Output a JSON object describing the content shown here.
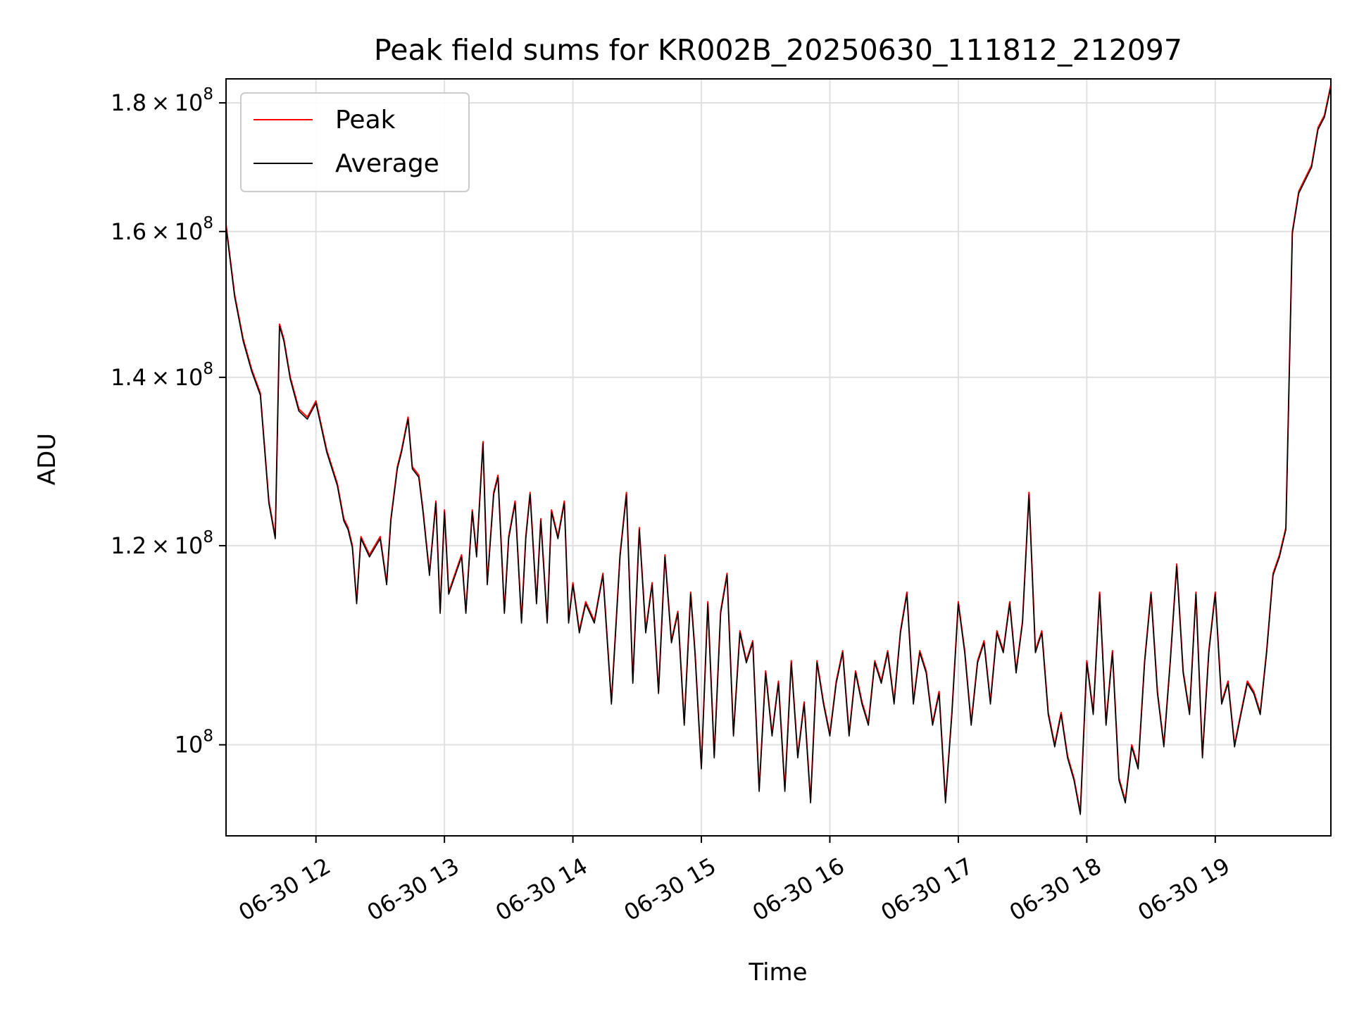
{
  "chart_data": {
    "type": "line",
    "title": "Peak field sums for KR002B_20250630_111812_212097",
    "xlabel": "Time",
    "ylabel": "ADU",
    "yscale": "log",
    "ylim": [
      92000000,
      184000000
    ],
    "xlim": [
      "2025-06-30 11:18",
      "2025-06-30 19:54"
    ],
    "grid": true,
    "legend": "top-left",
    "x_ticks": [
      {
        "value": "2025-06-30 12:00",
        "label": "06-30 12"
      },
      {
        "value": "2025-06-30 13:00",
        "label": "06-30 13"
      },
      {
        "value": "2025-06-30 14:00",
        "label": "06-30 14"
      },
      {
        "value": "2025-06-30 15:00",
        "label": "06-30 15"
      },
      {
        "value": "2025-06-30 16:00",
        "label": "06-30 16"
      },
      {
        "value": "2025-06-30 17:00",
        "label": "06-30 17"
      },
      {
        "value": "2025-06-30 18:00",
        "label": "06-30 18"
      },
      {
        "value": "2025-06-30 19:00",
        "label": "06-30 19"
      }
    ],
    "y_ticks": [
      {
        "value": 100000000,
        "mantissa": "",
        "exponent": "8"
      },
      {
        "value": 120000000,
        "mantissa": "1.2",
        "exponent": "8"
      },
      {
        "value": 140000000,
        "mantissa": "1.4",
        "exponent": "8"
      },
      {
        "value": 160000000,
        "mantissa": "1.6",
        "exponent": "8"
      },
      {
        "value": 180000000,
        "mantissa": "1.8",
        "exponent": "8"
      }
    ],
    "series": [
      {
        "name": "Peak",
        "color": "#ff0000"
      },
      {
        "name": "Average",
        "color": "#000000"
      }
    ],
    "x": [
      "2025-06-30 11:18",
      "2025-06-30 11:22",
      "2025-06-30 11:26",
      "2025-06-30 11:30",
      "2025-06-30 11:34",
      "2025-06-30 11:38",
      "2025-06-30 11:41",
      "2025-06-30 11:43",
      "2025-06-30 11:45",
      "2025-06-30 11:48",
      "2025-06-30 11:52",
      "2025-06-30 11:56",
      "2025-06-30 12:00",
      "2025-06-30 12:05",
      "2025-06-30 12:10",
      "2025-06-30 12:13",
      "2025-06-30 12:15",
      "2025-06-30 12:17",
      "2025-06-30 12:19",
      "2025-06-30 12:21",
      "2025-06-30 12:25",
      "2025-06-30 12:30",
      "2025-06-30 12:33",
      "2025-06-30 12:35",
      "2025-06-30 12:38",
      "2025-06-30 12:40",
      "2025-06-30 12:43",
      "2025-06-30 12:45",
      "2025-06-30 12:48",
      "2025-06-30 12:50",
      "2025-06-30 12:53",
      "2025-06-30 12:56",
      "2025-06-30 12:58",
      "2025-06-30 13:00",
      "2025-06-30 13:02",
      "2025-06-30 13:05",
      "2025-06-30 13:08",
      "2025-06-30 13:10",
      "2025-06-30 13:13",
      "2025-06-30 13:15",
      "2025-06-30 13:18",
      "2025-06-30 13:20",
      "2025-06-30 13:23",
      "2025-06-30 13:25",
      "2025-06-30 13:28",
      "2025-06-30 13:30",
      "2025-06-30 13:33",
      "2025-06-30 13:36",
      "2025-06-30 13:38",
      "2025-06-30 13:40",
      "2025-06-30 13:43",
      "2025-06-30 13:45",
      "2025-06-30 13:48",
      "2025-06-30 13:50",
      "2025-06-30 13:53",
      "2025-06-30 13:56",
      "2025-06-30 13:58",
      "2025-06-30 14:00",
      "2025-06-30 14:03",
      "2025-06-30 14:06",
      "2025-06-30 14:10",
      "2025-06-30 14:14",
      "2025-06-30 14:18",
      "2025-06-30 14:22",
      "2025-06-30 14:25",
      "2025-06-30 14:28",
      "2025-06-30 14:31",
      "2025-06-30 14:34",
      "2025-06-30 14:37",
      "2025-06-30 14:40",
      "2025-06-30 14:43",
      "2025-06-30 14:46",
      "2025-06-30 14:49",
      "2025-06-30 14:52",
      "2025-06-30 14:55",
      "2025-06-30 14:57",
      "2025-06-30 15:00",
      "2025-06-30 15:03",
      "2025-06-30 15:06",
      "2025-06-30 15:09",
      "2025-06-30 15:12",
      "2025-06-30 15:15",
      "2025-06-30 15:18",
      "2025-06-30 15:21",
      "2025-06-30 15:24",
      "2025-06-30 15:27",
      "2025-06-30 15:30",
      "2025-06-30 15:33",
      "2025-06-30 15:36",
      "2025-06-30 15:39",
      "2025-06-30 15:42",
      "2025-06-30 15:45",
      "2025-06-30 15:48",
      "2025-06-30 15:51",
      "2025-06-30 15:54",
      "2025-06-30 15:57",
      "2025-06-30 16:00",
      "2025-06-30 16:03",
      "2025-06-30 16:06",
      "2025-06-30 16:09",
      "2025-06-30 16:12",
      "2025-06-30 16:15",
      "2025-06-30 16:18",
      "2025-06-30 16:21",
      "2025-06-30 16:24",
      "2025-06-30 16:27",
      "2025-06-30 16:30",
      "2025-06-30 16:33",
      "2025-06-30 16:36",
      "2025-06-30 16:39",
      "2025-06-30 16:42",
      "2025-06-30 16:45",
      "2025-06-30 16:48",
      "2025-06-30 16:51",
      "2025-06-30 16:54",
      "2025-06-30 16:57",
      "2025-06-30 17:00",
      "2025-06-30 17:03",
      "2025-06-30 17:06",
      "2025-06-30 17:09",
      "2025-06-30 17:12",
      "2025-06-30 17:15",
      "2025-06-30 17:18",
      "2025-06-30 17:21",
      "2025-06-30 17:24",
      "2025-06-30 17:27",
      "2025-06-30 17:30",
      "2025-06-30 17:33",
      "2025-06-30 17:36",
      "2025-06-30 17:39",
      "2025-06-30 17:42",
      "2025-06-30 17:45",
      "2025-06-30 17:48",
      "2025-06-30 17:51",
      "2025-06-30 17:54",
      "2025-06-30 17:57",
      "2025-06-30 18:00",
      "2025-06-30 18:03",
      "2025-06-30 18:06",
      "2025-06-30 18:09",
      "2025-06-30 18:12",
      "2025-06-30 18:15",
      "2025-06-30 18:18",
      "2025-06-30 18:21",
      "2025-06-30 18:24",
      "2025-06-30 18:27",
      "2025-06-30 18:30",
      "2025-06-30 18:33",
      "2025-06-30 18:36",
      "2025-06-30 18:39",
      "2025-06-30 18:42",
      "2025-06-30 18:45",
      "2025-06-30 18:48",
      "2025-06-30 18:51",
      "2025-06-30 18:54",
      "2025-06-30 18:57",
      "2025-06-30 19:00",
      "2025-06-30 19:03",
      "2025-06-30 19:06",
      "2025-06-30 19:09",
      "2025-06-30 19:12",
      "2025-06-30 19:15",
      "2025-06-30 19:18",
      "2025-06-30 19:21",
      "2025-06-30 19:24",
      "2025-06-30 19:27",
      "2025-06-30 19:30",
      "2025-06-30 19:33",
      "2025-06-30 19:36",
      "2025-06-30 19:39",
      "2025-06-30 19:42",
      "2025-06-30 19:45",
      "2025-06-30 19:48",
      "2025-06-30 19:51",
      "2025-06-30 19:54"
    ],
    "peak_values": [
      161000000,
      151000000,
      145000000,
      141000000,
      138000000,
      125000000,
      121000000,
      147000000,
      145000000,
      140000000,
      136000000,
      135000000,
      137000000,
      131000000,
      127000000,
      123000000,
      122000000,
      120000000,
      114000000,
      121000000,
      119000000,
      121000000,
      116000000,
      123000000,
      129000000,
      131000000,
      135000000,
      129000000,
      128000000,
      124000000,
      117000000,
      125000000,
      113000000,
      124000000,
      115000000,
      117000000,
      119000000,
      113000000,
      124000000,
      119000000,
      132000000,
      116000000,
      126000000,
      128000000,
      113000000,
      121000000,
      125000000,
      112000000,
      121000000,
      126000000,
      114000000,
      123000000,
      112000000,
      124000000,
      121000000,
      125000000,
      112000000,
      116000000,
      111000000,
      114000000,
      112000000,
      117000000,
      104000000,
      119000000,
      126000000,
      106000000,
      122000000,
      111000000,
      116000000,
      105000000,
      119000000,
      110000000,
      113000000,
      102000000,
      115000000,
      109000000,
      98000000,
      114000000,
      99000000,
      113000000,
      117000000,
      101000000,
      111000000,
      108000000,
      110000000,
      96000000,
      107000000,
      101000000,
      106000000,
      96000000,
      108000000,
      99000000,
      104000000,
      95000000,
      108000000,
      104000000,
      101000000,
      106000000,
      109000000,
      101000000,
      107000000,
      104000000,
      102000000,
      108000000,
      106000000,
      109000000,
      104000000,
      111000000,
      115000000,
      104000000,
      109000000,
      107000000,
      102000000,
      105000000,
      95000000,
      103000000,
      114000000,
      109000000,
      102000000,
      108000000,
      110000000,
      104000000,
      111000000,
      109000000,
      114000000,
      107000000,
      112000000,
      126000000,
      109000000,
      111000000,
      103000000,
      100000000,
      103000000,
      99000000,
      97000000,
      94000000,
      108000000,
      103000000,
      115000000,
      102000000,
      109000000,
      97000000,
      95000000,
      100000000,
      98000000,
      108000000,
      115000000,
      105000000,
      100000000,
      108000000,
      118000000,
      107000000,
      103000000,
      115000000,
      99000000,
      109000000,
      115000000,
      104000000,
      106000000,
      100000000,
      103000000,
      106000000,
      105000000,
      103000000,
      109000000,
      117000000,
      119000000,
      122000000,
      160000000,
      166000000,
      168000000,
      170000000,
      176000000,
      178000000,
      183000000
    ]
  }
}
